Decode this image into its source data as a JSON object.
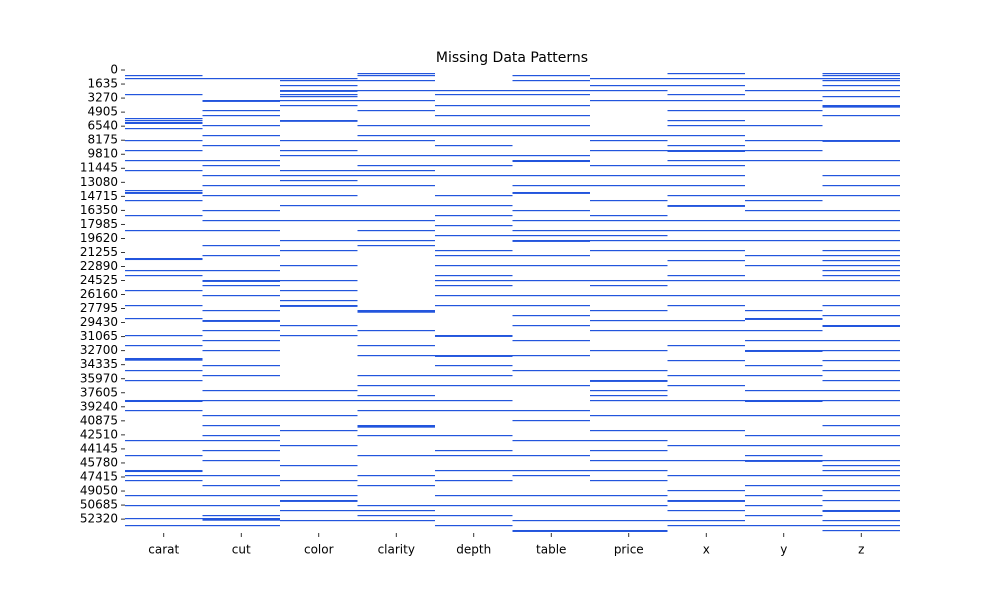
{
  "chart_data": {
    "type": "heatmap",
    "title": "Missing Data Patterns",
    "color": "#2255dd",
    "ylim": [
      0,
      53940
    ],
    "yticks": [
      0,
      1635,
      3270,
      4905,
      6540,
      8175,
      9810,
      11445,
      13080,
      14715,
      16350,
      17985,
      19620,
      21255,
      22890,
      24525,
      26160,
      27795,
      29430,
      31065,
      32700,
      34335,
      35970,
      37605,
      39240,
      40875,
      42510,
      44145,
      45780,
      47415,
      49050,
      50685,
      52320
    ],
    "series": [
      {
        "name": "carat",
        "values": [
          583,
          932,
          2796,
          5592,
          5825,
          6058,
          6150,
          6757,
          8155,
          9320,
          10485,
          11650,
          13980,
          14213,
          14300,
          15145,
          16893,
          18640,
          21902,
          22000,
          23300,
          23883,
          25630,
          27378,
          28892,
          30873,
          32038,
          33552,
          33640,
          33730,
          34950,
          36115,
          38445,
          38540,
          39610,
          43105,
          44853,
          46600,
          46700,
          47183,
          47765,
          49513,
          50678,
          52192,
          53008
        ]
      },
      {
        "name": "cut",
        "values": [
          932,
          3495,
          3580,
          4660,
          5243,
          6408,
          7573,
          8738,
          10485,
          11068,
          12233,
          13398,
          14563,
          16310,
          17475,
          18640,
          20388,
          21553,
          23300,
          24465,
          24550,
          25048,
          26213,
          27960,
          29125,
          29210,
          30290,
          31455,
          32620,
          34368,
          35533,
          37280,
          38445,
          40193,
          41358,
          42523,
          43105,
          44270,
          45435,
          47183,
          48348,
          49513,
          50678,
          51843,
          52192,
          52280,
          52370,
          53008
        ]
      },
      {
        "name": "color",
        "values": [
          932,
          1165,
          1748,
          2330,
          2410,
          2796,
          3030,
          3495,
          4078,
          5825,
          5900,
          8155,
          9320,
          9903,
          11650,
          12233,
          12815,
          13398,
          14563,
          15728,
          17475,
          19805,
          20970,
          22718,
          24465,
          25630,
          26795,
          27378,
          27460,
          29708,
          30873,
          37280,
          38445,
          40193,
          41940,
          43688,
          46018,
          47765,
          49513,
          50095,
          50180,
          51260,
          52425
        ]
      },
      {
        "name": "clarity",
        "values": [
          350,
          583,
          1165,
          2330,
          3495,
          4660,
          6408,
          7573,
          8155,
          9903,
          11068,
          11650,
          12233,
          13398,
          15728,
          17475,
          18640,
          19805,
          20388,
          27960,
          28050,
          28140,
          30290,
          32038,
          33203,
          35533,
          36698,
          37863,
          38445,
          39610,
          41358,
          41450,
          41530,
          42523,
          44853,
          47183,
          48348,
          50678,
          51260,
          51843,
          52425
        ]
      },
      {
        "name": "depth",
        "values": [
          2330,
          2796,
          4078,
          5243,
          6408,
          7573,
          8738,
          9903,
          11068,
          12233,
          14563,
          15728,
          16893,
          18058,
          19223,
          20970,
          21553,
          22718,
          23883,
          24465,
          25048,
          26213,
          27378,
          30873,
          30960,
          33203,
          33290,
          34368,
          35533,
          36698,
          38445,
          39610,
          42523,
          44270,
          44853,
          46600,
          47765,
          49513,
          50678,
          51843,
          53008
        ]
      },
      {
        "name": "table",
        "values": [
          583,
          1165,
          2330,
          2796,
          4078,
          5243,
          6408,
          7573,
          9903,
          10485,
          10580,
          12233,
          13398,
          14213,
          14300,
          16310,
          17475,
          18640,
          19223,
          19805,
          19890,
          21553,
          22718,
          24465,
          26213,
          27378,
          28543,
          29708,
          31455,
          33203,
          34950,
          36698,
          39610,
          40775,
          43105,
          44853,
          46600,
          47183,
          49513,
          50678,
          52425,
          53590,
          53680
        ]
      },
      {
        "name": "price",
        "values": [
          932,
          1748,
          2330,
          3495,
          7573,
          8155,
          9320,
          11068,
          12233,
          13398,
          15145,
          16893,
          17475,
          18640,
          19223,
          19805,
          20970,
          22718,
          24465,
          25048,
          26213,
          27960,
          29125,
          30290,
          32620,
          34950,
          36115,
          36200,
          37280,
          37863,
          38445,
          40193,
          41940,
          43105,
          44270,
          45435,
          46600,
          47765,
          49513,
          50678,
          52425,
          53590,
          53680
        ]
      },
      {
        "name": "x",
        "values": [
          350,
          932,
          1748,
          2796,
          3495,
          4660,
          5825,
          6408,
          7573,
          8738,
          9320,
          9410,
          10485,
          11068,
          12233,
          13398,
          14563,
          15728,
          15810,
          17475,
          18640,
          19805,
          20970,
          22135,
          23883,
          24465,
          26213,
          27378,
          29125,
          30290,
          32038,
          33785,
          35533,
          36698,
          38445,
          40193,
          41940,
          43688,
          45435,
          47183,
          48930,
          50095,
          50180,
          51260,
          52425,
          53008
        ]
      },
      {
        "name": "y",
        "values": [
          932,
          2330,
          3495,
          4660,
          6408,
          8155,
          9320,
          10485,
          14563,
          15145,
          16310,
          17475,
          18640,
          19805,
          21553,
          22718,
          24465,
          26213,
          27960,
          28892,
          28980,
          30290,
          31455,
          32620,
          32710,
          34368,
          35533,
          37280,
          38445,
          38540,
          40193,
          42523,
          43688,
          44853,
          45435,
          45520,
          47183,
          48348,
          49513,
          50678,
          51843,
          53008
        ]
      },
      {
        "name": "z",
        "values": [
          350,
          583,
          932,
          1165,
          1748,
          2330,
          3030,
          4078,
          4160,
          4245,
          5243,
          8155,
          8240,
          10485,
          12233,
          13398,
          14563,
          16310,
          17475,
          18640,
          19805,
          20970,
          21553,
          22135,
          22718,
          23300,
          23883,
          24465,
          26213,
          27378,
          28543,
          29708,
          29800,
          31455,
          32620,
          33785,
          34950,
          36115,
          37280,
          38445,
          40193,
          41358,
          42523,
          43688,
          45435,
          46018,
          46600,
          47183,
          48348,
          48930,
          50095,
          51260,
          51350,
          52425,
          53008,
          53590
        ]
      }
    ]
  }
}
